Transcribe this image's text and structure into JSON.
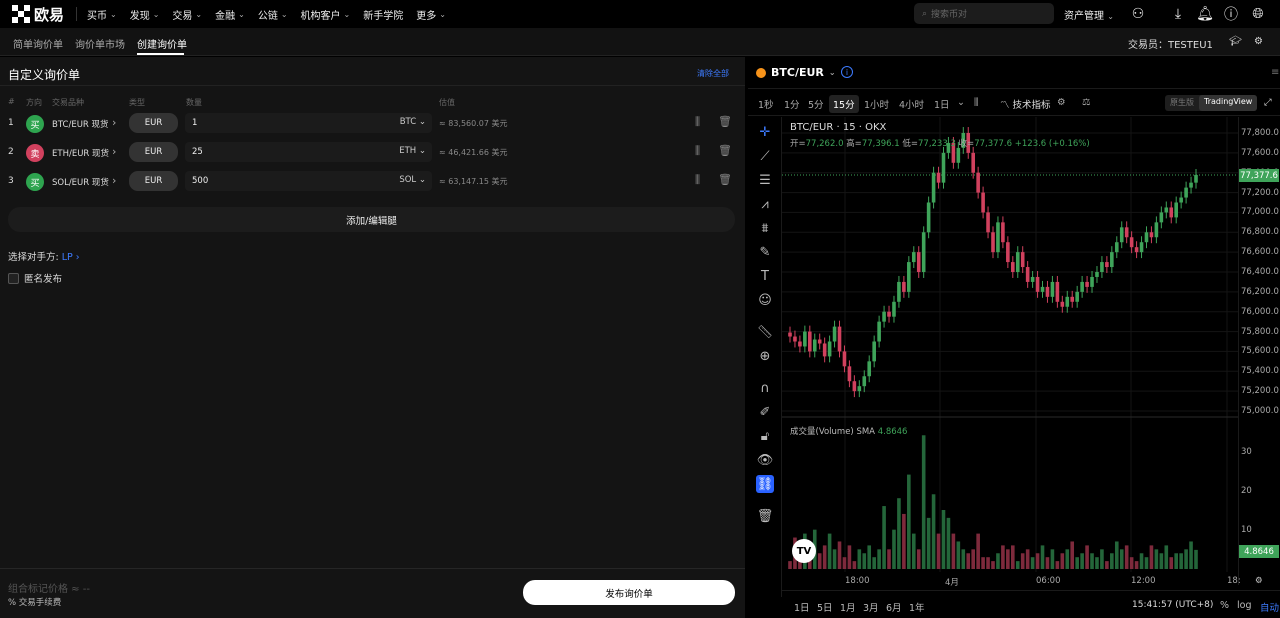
{
  "topnav": {
    "logo": "欧易",
    "items": [
      "买币",
      "发现",
      "交易",
      "金融",
      "公链",
      "机构客户",
      "新手学院",
      "更多"
    ],
    "search_placeholder": "搜索币对",
    "asset_mgmt": "资产管理"
  },
  "subnav": {
    "tabs": [
      "简单询价单",
      "询价单市场",
      "创建询价单"
    ],
    "active": 2,
    "trader_label": "交易员：",
    "trader": "TESTEU1"
  },
  "rfq": {
    "title": "自定义询价单",
    "clear_all": "清除全部",
    "columns": [
      "#",
      "方向",
      "交易品种",
      "类型",
      "数量",
      "估值"
    ],
    "legs": [
      {
        "n": "1",
        "side": "买",
        "side_color": "#2ea44f",
        "instrument": "BTC/EUR 现货",
        "type": "EUR",
        "qty": "1",
        "unit": "BTC",
        "est": "≈ 83,560.07 美元"
      },
      {
        "n": "2",
        "side": "卖",
        "side_color": "#d1415e",
        "instrument": "ETH/EUR 现货",
        "type": "EUR",
        "qty": "25",
        "unit": "ETH",
        "est": "≈ 46,421.66 美元"
      },
      {
        "n": "3",
        "side": "买",
        "side_color": "#2ea44f",
        "instrument": "SOL/EUR 现货",
        "type": "EUR",
        "qty": "500",
        "unit": "SOL",
        "est": "≈ 63,147.15 美元"
      }
    ],
    "add_edit": "添加/编辑腿",
    "counterparty_label": "选择对手方:",
    "counterparty": "LP",
    "anonymous": "匿名发布",
    "mark_price": "组合标记价格 ≈ --",
    "fee": "% 交易手续费",
    "publish": "发布询价单"
  },
  "chart": {
    "pair": "BTC/EUR",
    "timeframes": [
      "1秒",
      "1分",
      "5分",
      "15分",
      "1小时",
      "4小时",
      "1日"
    ],
    "active_tf": "15分",
    "indicators": "技术指标",
    "versions": [
      "原生版",
      "TradingView"
    ],
    "legend": "BTC/EUR · 15 · OKX",
    "ohlc": {
      "o": "77,262.0",
      "h": "77,396.1",
      "l": "77,233.3",
      "c": "77,377.6",
      "chg": "+123.6 (+0.16%)"
    },
    "vol_legend": "成交量(Volume)",
    "vol_sma": "SMA",
    "vol_sma_val": "4.8646",
    "last_price": "77,377.6",
    "ranges": [
      "1日",
      "5日",
      "1月",
      "3月",
      "6月",
      "1年"
    ],
    "clock": "15:41:57 (UTC+8)",
    "pct": "%",
    "log": "log",
    "auto": "自动"
  },
  "chart_data": {
    "type": "candlestick",
    "up_color": "#3fa45a",
    "down_color": "#d1415e",
    "price_ticks": [
      "77,800.0",
      "77,600.0",
      "77,400.0",
      "77,200.0",
      "77,000.0",
      "76,800.0",
      "76,600.0",
      "76,400.0",
      "76,200.0",
      "76,000.0",
      "75,800.0",
      "75,600.0",
      "75,400.0",
      "75,200.0",
      "75,000.0"
    ],
    "ylim": [
      75000,
      77800
    ],
    "vol_ticks": [
      "30",
      "20",
      "10"
    ],
    "vol_ylim": [
      0,
      30
    ],
    "x_ticks": [
      "18:00",
      "4月",
      "06:00",
      "12:00",
      "18:"
    ],
    "closes": [
      75750,
      75700,
      75650,
      75800,
      75600,
      75720,
      75680,
      75550,
      75700,
      75850,
      75600,
      75450,
      75300,
      75200,
      75250,
      75350,
      75500,
      75700,
      75900,
      76000,
      75950,
      76100,
      76300,
      76200,
      76500,
      76600,
      76400,
      76800,
      77100,
      77400,
      77300,
      77600,
      77700,
      77500,
      77650,
      77800,
      77600,
      77400,
      77200,
      77000,
      76800,
      76600,
      76900,
      76700,
      76500,
      76400,
      76600,
      76450,
      76300,
      76350,
      76200,
      76250,
      76150,
      76300,
      76100,
      76050,
      76150,
      76100,
      76200,
      76300,
      76250,
      76350,
      76400,
      76500,
      76450,
      76600,
      76700,
      76850,
      76750,
      76650,
      76600,
      76700,
      76800,
      76750,
      76900,
      77000,
      77050,
      76950,
      77100,
      77150,
      77250,
      77300,
      77377.6
    ],
    "volumes": [
      2,
      8,
      7,
      9,
      3,
      10,
      4,
      6,
      9,
      5,
      7,
      3,
      6,
      2,
      5,
      4,
      6,
      3,
      5,
      16,
      5,
      10,
      18,
      14,
      24,
      9,
      5,
      34,
      13,
      19,
      9,
      15,
      13,
      9,
      7,
      5,
      4,
      5,
      9,
      3,
      3,
      2,
      4,
      6,
      5,
      6,
      2,
      4,
      5,
      3,
      4,
      6,
      3,
      5,
      2,
      4,
      5,
      7,
      3,
      4,
      6,
      4,
      3,
      5,
      2,
      4,
      7,
      5,
      6,
      3,
      2,
      4,
      3,
      6,
      5,
      4,
      6,
      3,
      4,
      4,
      5,
      7,
      4.86
    ]
  }
}
